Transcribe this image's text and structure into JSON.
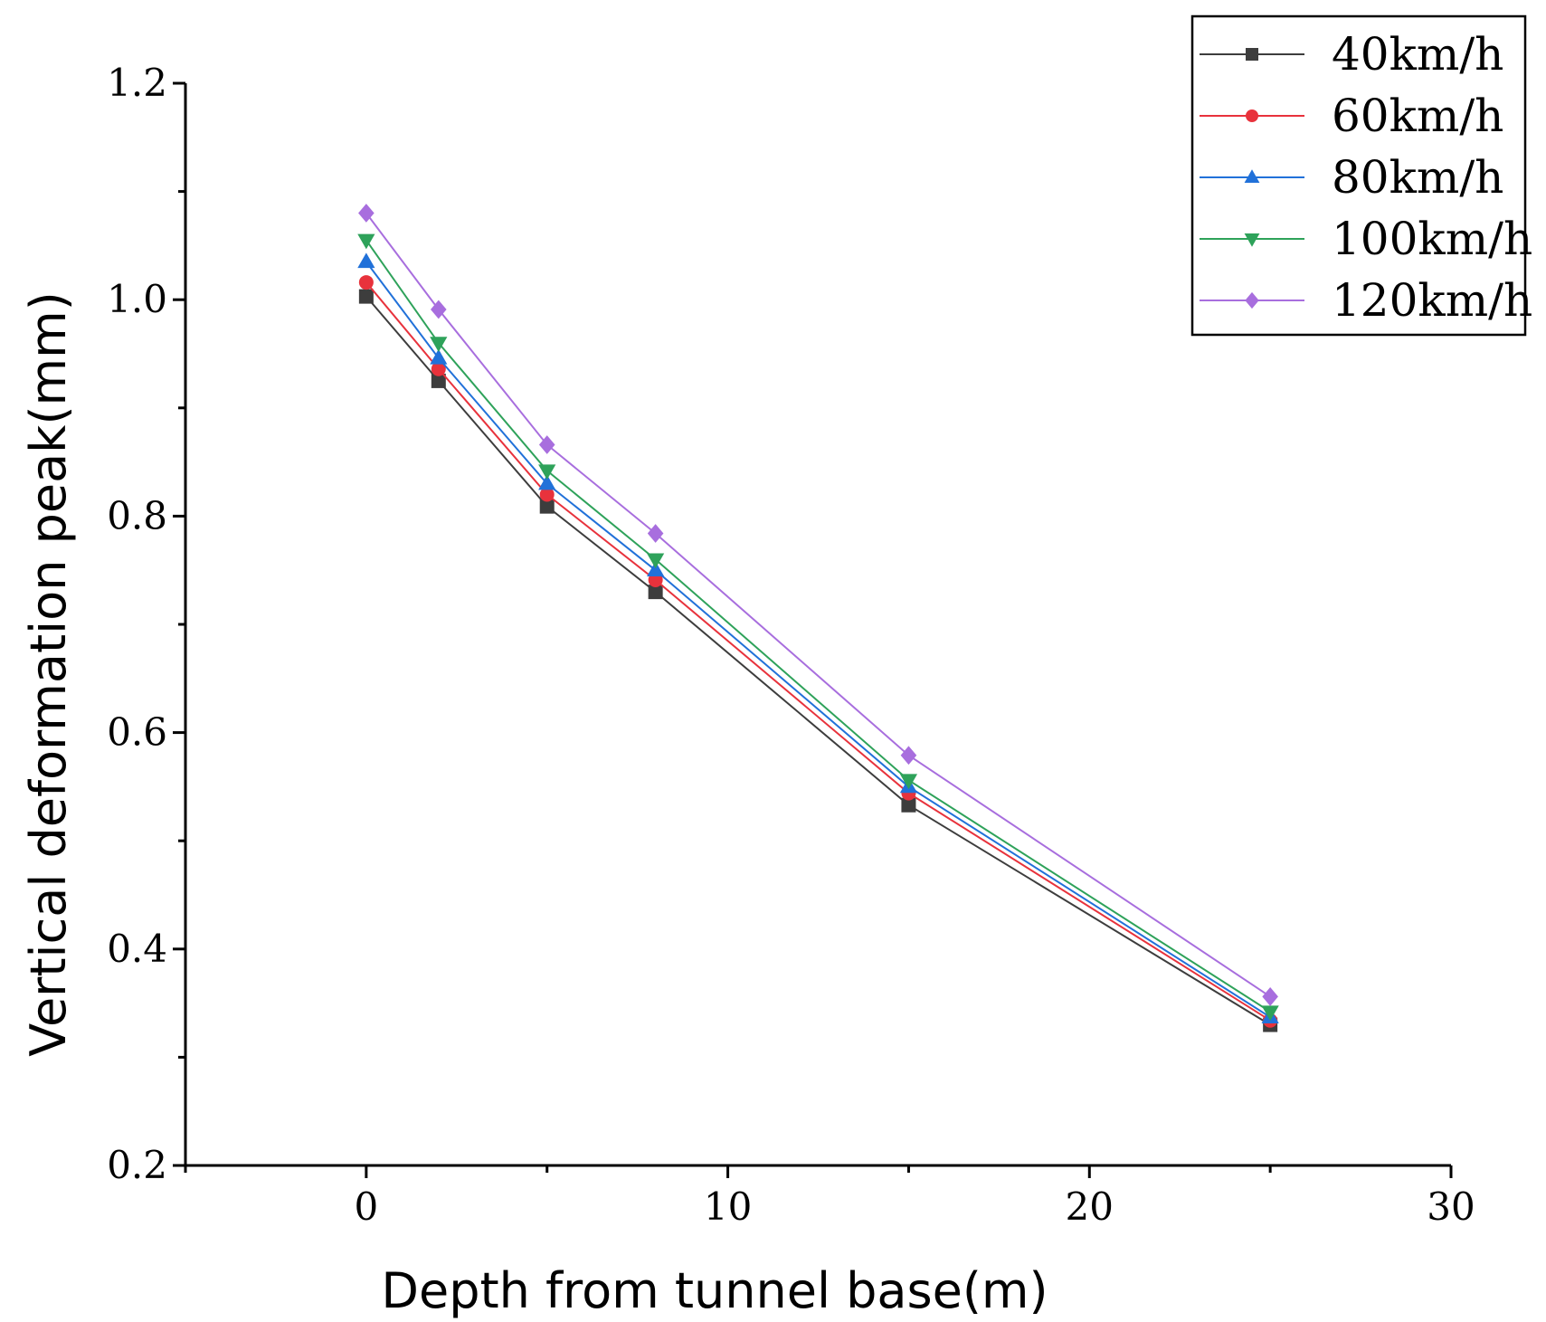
{
  "chart_data": {
    "type": "line",
    "title": "",
    "xlabel": "Depth from tunnel base(m)",
    "ylabel": "Vertical deformation peak(mm)",
    "xlim": [
      -5,
      30
    ],
    "ylim": [
      0.2,
      1.2
    ],
    "xticks": [
      0,
      10,
      20,
      30
    ],
    "yticks": [
      0.2,
      0.4,
      0.6,
      0.8,
      1.0,
      1.2
    ],
    "yticks_minor": [
      0.3,
      0.5,
      0.7,
      0.9,
      1.1
    ],
    "xticks_minor": [
      -5,
      5,
      15,
      25
    ],
    "xtick_labels": [
      "0",
      "10",
      "20",
      "30"
    ],
    "ytick_labels": [
      "0.2",
      "0.4",
      "0.6",
      "0.8",
      "1.0",
      "1.2"
    ],
    "grid": false,
    "legend_position": "top-right",
    "x": [
      0,
      2,
      5,
      8,
      15,
      25
    ],
    "series": [
      {
        "name": "40km/h",
        "color": "#3d3d3d",
        "marker": "square",
        "values": [
          1.003,
          0.925,
          0.809,
          0.73,
          0.533,
          0.33
        ]
      },
      {
        "name": "60km/h",
        "color": "#e8323c",
        "marker": "circle",
        "values": [
          1.016,
          0.936,
          0.82,
          0.741,
          0.544,
          0.334
        ]
      },
      {
        "name": "80km/h",
        "color": "#2171d9",
        "marker": "triangle-up",
        "values": [
          1.035,
          0.946,
          0.83,
          0.75,
          0.55,
          0.337
        ]
      },
      {
        "name": "100km/h",
        "color": "#2ea25a",
        "marker": "triangle-down",
        "values": [
          1.055,
          0.96,
          0.842,
          0.76,
          0.556,
          0.342
        ]
      },
      {
        "name": "120km/h",
        "color": "#a86ede",
        "marker": "diamond",
        "values": [
          1.08,
          0.991,
          0.866,
          0.784,
          0.579,
          0.356
        ]
      }
    ]
  }
}
